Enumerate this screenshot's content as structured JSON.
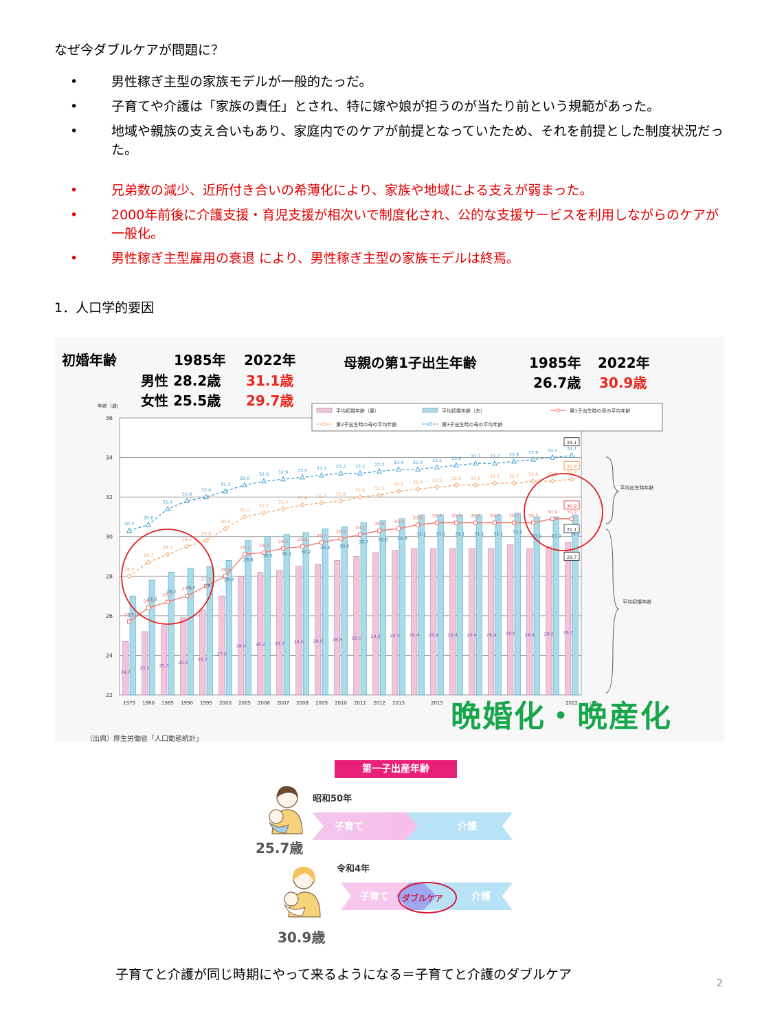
{
  "heading": "なぜ今ダブルケアが問題に？",
  "bullets_black": [
    "男性稼ぎ主型の家族モデルが一般的たっだ。",
    "子育てや介護は「家族の責任」とされ、特に嫁や娘が担うのが当たり前という規範があった。",
    "地域や親族の支え合いもあり、家庭内でのケアが前提となっていたため、それを前提とした制度状況だった。"
  ],
  "bullets_red": [
    "兄弟数の減少、近所付き合いの希薄化により、家族や地域による支えが弱まった。",
    "2000年前後に介護支援・育児支援が相次いで制度化され、公的な支援サービスを利用しながらのケアが一般化。",
    "男性稼ぎ主型雇用の衰退 により、男性稼ぎ主型の家族モデルは終焉。"
  ],
  "bullet_char": "•",
  "section_title": "1．人口学的要因",
  "panel": {
    "left_title": "初婚年齢",
    "left_year1": "1985年",
    "left_year2": "2022年",
    "male_label": "男性 28.2歳",
    "male_2022": "31.1歳",
    "female_label": "女性 25.5歳",
    "female_2022": "29.7歳",
    "right_title": "母親の第1子出生年齢",
    "right_year1": "1985年",
    "right_year2": "2022年",
    "right_1985": "26.7歳",
    "right_2022": "30.9歳",
    "source": "（出典）厚生労働省「人口動態統計」",
    "slogan": "晩婚化・晩産化"
  },
  "chart_data": {
    "type": "bar",
    "ylabel": "年齢（歳）",
    "xlabel": "（年）",
    "ylim": [
      22,
      36
    ],
    "yticks": [
      22,
      24,
      26,
      28,
      30,
      32,
      34,
      36
    ],
    "categories": [
      "1975",
      "1980",
      "1985",
      "1990",
      "1995",
      "2000",
      "2005",
      "2006",
      "2007",
      "2008",
      "2009",
      "2010",
      "2011",
      "2012",
      "2013",
      "2014",
      "2015",
      "2016",
      "2017",
      "2018",
      "2019",
      "2020",
      "2021",
      "2022"
    ],
    "shown_categories": [
      "1975",
      "1980",
      "1985",
      "1990",
      "1995",
      "2000",
      "2005",
      "2006",
      "2007",
      "2008",
      "2009",
      "2010",
      "2011",
      "2012",
      "2013",
      "2015",
      "2022"
    ],
    "series": [
      {
        "name": "平均初婚年齢（妻）",
        "kind": "bar",
        "color": "#f2c4dc",
        "values": [
          24.7,
          25.2,
          25.5,
          25.9,
          26.3,
          27.0,
          28.0,
          28.2,
          28.3,
          28.5,
          28.6,
          28.8,
          29.0,
          29.2,
          29.3,
          29.4,
          29.4,
          29.4,
          29.4,
          29.4,
          29.6,
          29.4,
          29.5,
          29.7
        ]
      },
      {
        "name": "平均初婚年齢（夫）",
        "kind": "bar",
        "color": "#a9dbe8",
        "values": [
          27.0,
          27.8,
          28.2,
          28.4,
          28.5,
          28.8,
          29.8,
          30.0,
          30.1,
          30.2,
          30.4,
          30.5,
          30.7,
          30.8,
          30.9,
          31.1,
          31.1,
          31.1,
          31.1,
          31.1,
          31.2,
          31.0,
          31.0,
          31.1
        ]
      },
      {
        "name": "第1子出生時の母の平均年齢",
        "kind": "line",
        "color": "#f0746b",
        "marker": "square",
        "values": [
          25.7,
          26.4,
          26.7,
          27.0,
          27.5,
          28.0,
          29.1,
          29.2,
          29.4,
          29.5,
          29.7,
          29.9,
          30.1,
          30.3,
          30.4,
          30.6,
          30.7,
          30.7,
          30.7,
          30.7,
          30.7,
          30.7,
          30.9,
          30.9
        ]
      },
      {
        "name": "第2子出生時の母の平均年齢",
        "kind": "line",
        "color": "#f6a56a",
        "marker": "diamond",
        "dash": true,
        "values": [
          28.0,
          28.7,
          29.1,
          29.5,
          29.8,
          30.4,
          31.0,
          31.2,
          31.4,
          31.6,
          31.7,
          31.8,
          32.0,
          32.1,
          32.3,
          32.4,
          32.5,
          32.6,
          32.6,
          32.7,
          32.7,
          32.8,
          32.8,
          32.9
        ]
      },
      {
        "name": "第3子出生時の母の平均年齢",
        "kind": "line",
        "color": "#3f9fd3",
        "marker": "triangle",
        "dash": true,
        "values": [
          30.3,
          30.6,
          31.4,
          31.8,
          32.0,
          32.3,
          32.6,
          32.8,
          32.9,
          33.0,
          33.1,
          33.2,
          33.2,
          33.3,
          33.4,
          33.4,
          33.5,
          33.6,
          33.7,
          33.7,
          33.8,
          33.9,
          34.0,
          34.1
        ]
      }
    ],
    "side_labels": [
      "平均出生時年齢",
      "平均初婚年齢"
    ]
  },
  "diagram": {
    "title": "第一子出産年齢",
    "era1": "昭和50年",
    "age1": "25.7歳",
    "era2": "令和4年",
    "age2": "30.9歳",
    "childcare": "子育て",
    "nursing": "介護",
    "double": "ダブルケア"
  },
  "footer": "子育てと介護が同じ時期にやって来るようになる＝子育てと介護のダブルケア",
  "page_number": "2"
}
